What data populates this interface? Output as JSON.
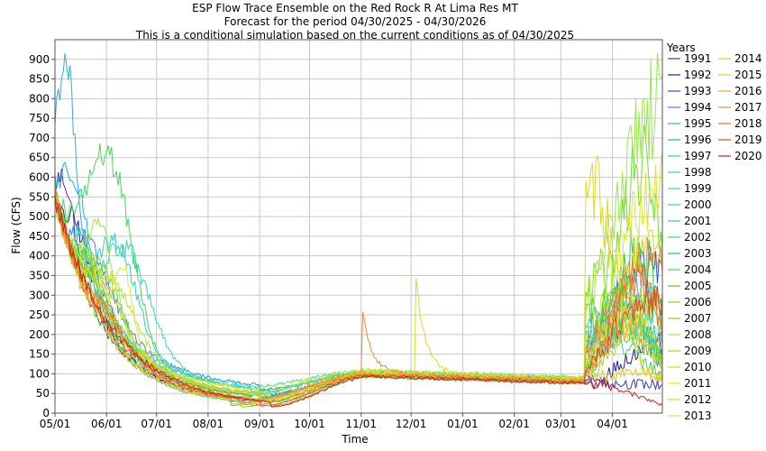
{
  "chart_data": {
    "type": "line",
    "title_lines": [
      "ESP Flow Trace Ensemble on the Red Rock R At Lima Res MT",
      "Forecast for the period 04/30/2025 - 04/30/2026",
      "This is a conditional simulation based on the current conditions as of 04/30/2025"
    ],
    "xlabel": "Time",
    "ylabel": "Flow (CFS)",
    "ylim": [
      0,
      950
    ],
    "yticks": [
      0,
      50,
      100,
      150,
      200,
      250,
      300,
      350,
      400,
      450,
      500,
      550,
      600,
      650,
      700,
      750,
      800,
      850,
      900
    ],
    "x_tick_labels": [
      "05/01",
      "06/01",
      "07/01",
      "08/01",
      "09/01",
      "10/01",
      "11/01",
      "12/01",
      "01/01",
      "02/01",
      "03/01",
      "04/01"
    ],
    "x_tick_days": [
      0,
      31,
      61,
      92,
      123,
      153,
      184,
      214,
      245,
      276,
      304,
      335
    ],
    "x_range_days": [
      0,
      365
    ],
    "grid": true,
    "legend_title": "Years",
    "legend_placement": "right",
    "series": [
      {
        "name": "1991",
        "color": "#3a3acc",
        "peak": [
          4,
          600
        ],
        "summer": 30,
        "winter": 80,
        "spring": [
          -1,
          220
        ],
        "pulse": null
      },
      {
        "name": "1992",
        "color": "#2020a0",
        "peak": [
          8,
          500
        ],
        "summer": 22,
        "winter": 82,
        "spring": [
          365,
          180
        ],
        "pulse": null
      },
      {
        "name": "1993",
        "color": "#2855cf",
        "peak": [
          15,
          380
        ],
        "summer": 35,
        "winter": 84,
        "spring": [
          357,
          360
        ],
        "pulse": null
      },
      {
        "name": "1994",
        "color": "#3c88d8",
        "peak": [
          12,
          450
        ],
        "summer": 60,
        "winter": 86,
        "spring": [
          340,
          300
        ],
        "pulse": null
      },
      {
        "name": "1995",
        "color": "#38a8e0",
        "peak": [
          6,
          890
        ],
        "summer": 45,
        "winter": 88,
        "spring": [
          350,
          330
        ],
        "pulse": null
      },
      {
        "name": "1996",
        "color": "#1fb0d0",
        "peak": [
          9,
          620
        ],
        "summer": 40,
        "winter": 90,
        "spring": [
          340,
          260
        ],
        "pulse": null
      },
      {
        "name": "1997",
        "color": "#2ccfd0",
        "peak": [
          35,
          440
        ],
        "summer": 65,
        "winter": 92,
        "spring": [
          345,
          240
        ],
        "pulse": null
      },
      {
        "name": "1998",
        "color": "#30d8b8",
        "peak": [
          40,
          420
        ],
        "summer": 55,
        "winter": 88,
        "spring": [
          335,
          280
        ],
        "pulse": null
      },
      {
        "name": "1999",
        "color": "#40dca8",
        "peak": [
          14,
          460
        ],
        "summer": 48,
        "winter": 84,
        "spring": [
          352,
          260
        ],
        "pulse": null
      },
      {
        "name": "2000",
        "color": "#3bd890",
        "peak": [
          10,
          420
        ],
        "summer": 28,
        "winter": 80,
        "spring": [
          345,
          220
        ],
        "pulse": null
      },
      {
        "name": "2001",
        "color": "#48cc70",
        "peak": [
          16,
          360
        ],
        "summer": 20,
        "winter": 78,
        "spring": [
          330,
          200
        ],
        "pulse": null
      },
      {
        "name": "2002",
        "color": "#45d858",
        "peak": [
          30,
          660
        ],
        "summer": 25,
        "winter": 82,
        "spring": [
          358,
          270
        ],
        "pulse": null
      },
      {
        "name": "2003",
        "color": "#2fc840",
        "peak": [
          12,
          400
        ],
        "summer": 32,
        "winter": 86,
        "spring": [
          350,
          420
        ],
        "pulse": null
      },
      {
        "name": "2004",
        "color": "#58d838",
        "peak": [
          18,
          380
        ],
        "summer": 38,
        "winter": 84,
        "spring": [
          340,
          260
        ],
        "pulse": null
      },
      {
        "name": "2005",
        "color": "#60c828",
        "peak": [
          7,
          420
        ],
        "summer": 18,
        "winter": 80,
        "spring": [
          326,
          280
        ],
        "pulse": null
      },
      {
        "name": "2006",
        "color": "#6ee030",
        "peak": [
          20,
          400
        ],
        "summer": 42,
        "winter": 90,
        "spring": [
          352,
          640
        ],
        "pulse": null
      },
      {
        "name": "2007",
        "color": "#88dc20",
        "peak": [
          5,
          360
        ],
        "summer": 16,
        "winter": 78,
        "spring": [
          332,
          360
        ],
        "pulse": null
      },
      {
        "name": "2008",
        "color": "#9ae84a",
        "peak": [
          25,
          480
        ],
        "summer": 50,
        "winter": 94,
        "spring": [
          360,
          780
        ],
        "pulse": null
      },
      {
        "name": "2009",
        "color": "#a8d820",
        "peak": [
          14,
          410
        ],
        "summer": 36,
        "winter": 86,
        "spring": [
          354,
          300
        ],
        "pulse": null
      },
      {
        "name": "2010",
        "color": "#c0e020",
        "peak": [
          28,
          360
        ],
        "summer": 30,
        "winter": 84,
        "spring": [
          360,
          440
        ],
        "pulse": null
      },
      {
        "name": "2011",
        "color": "#d8e830",
        "peak": [
          40,
          380
        ],
        "summer": 58,
        "winter": 92,
        "spring": [
          362,
          570
        ],
        "pulse": null
      },
      {
        "name": "2012",
        "color": "#e0d820",
        "peak": [
          10,
          340
        ],
        "summer": 22,
        "winter": 90,
        "spring": [
          322,
          580
        ],
        "pulse": [
          217,
          330
        ]
      },
      {
        "name": "2013",
        "color": "#e8e040",
        "peak": [
          12,
          380
        ],
        "summer": 26,
        "winter": 86,
        "spring": [
          345,
          260
        ],
        "pulse": null
      },
      {
        "name": "2014",
        "color": "#e8c820",
        "peak": [
          18,
          360
        ],
        "summer": 34,
        "winter": 88,
        "spring": [
          350,
          100
        ],
        "pulse": null
      },
      {
        "name": "2015",
        "color": "#f0c040",
        "peak": [
          20,
          300
        ],
        "summer": 20,
        "winter": 82,
        "spring": [
          340,
          240
        ],
        "pulse": null
      },
      {
        "name": "2016",
        "color": "#f0a838",
        "peak": [
          15,
          300
        ],
        "summer": 24,
        "winter": 84,
        "spring": [
          355,
          260
        ],
        "pulse": null
      },
      {
        "name": "2017",
        "color": "#f08838",
        "peak": [
          22,
          280
        ],
        "summer": 28,
        "winter": 86,
        "spring": [
          358,
          390
        ],
        "pulse": [
          185,
          250
        ]
      },
      {
        "name": "2018",
        "color": "#e87030",
        "peak": [
          14,
          300
        ],
        "summer": 20,
        "winter": 82,
        "spring": [
          350,
          340
        ],
        "pulse": null
      },
      {
        "name": "2019",
        "color": "#d84a28",
        "peak": [
          10,
          260
        ],
        "summer": 18,
        "winter": 80,
        "spring": [
          356,
          300
        ],
        "pulse": null
      },
      {
        "name": "2020",
        "color": "#cc2020",
        "peak": null,
        "summer": 16,
        "winter": 78,
        "spring": [
          365,
          20
        ],
        "pulse": null
      }
    ]
  }
}
